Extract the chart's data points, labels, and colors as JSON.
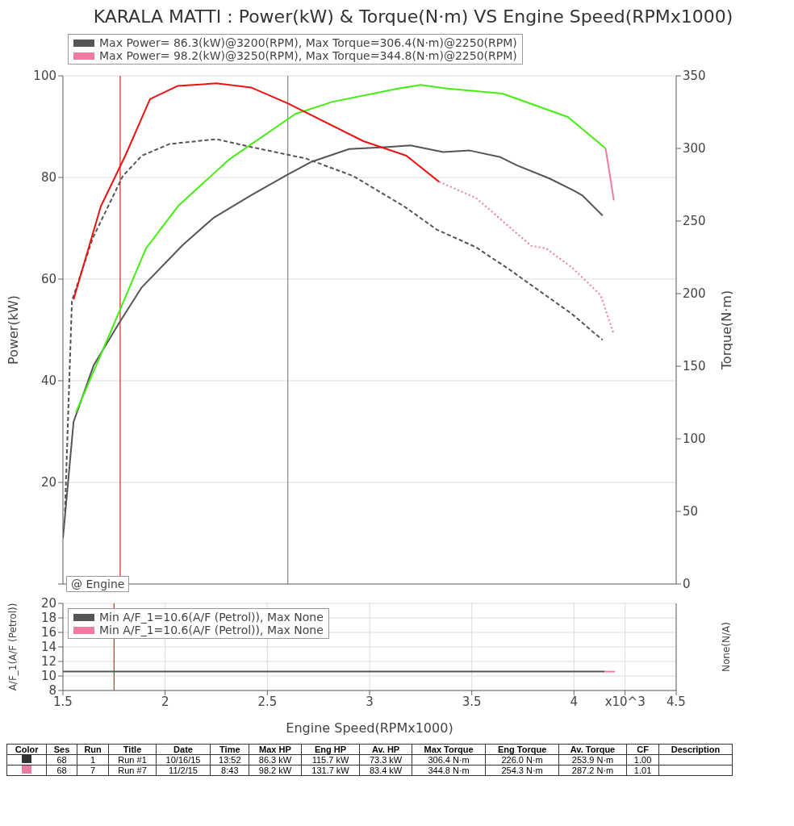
{
  "chart_data": [
    {
      "type": "line",
      "title": "KARALA MATTI : Power(kW) & Torque(N·m) VS Engine Speed(RPMx1000)",
      "ylabel": "Power(kW)",
      "y2label": "Torque(N·m)",
      "xlim": [
        1.5,
        4.5
      ],
      "xticks": [
        1.5,
        2,
        2.5,
        3,
        3.5,
        4,
        4.5
      ],
      "ylim": [
        0,
        100
      ],
      "yticks": [
        {
          "value": 0,
          "label": null
        },
        20,
        40,
        60,
        80,
        100
      ],
      "y2lim": [
        0,
        350
      ],
      "y2ticks": [
        0,
        50,
        100,
        150,
        200,
        250,
        300,
        350
      ],
      "tick_labels": "y",
      "grid": true,
      "legend": "top",
      "series": [
        {
          "name": "Max Power= 86.3(kW)@3200(RPM), Max Torque=306.4(N·m)@2250(RPM)",
          "color": "#555555",
          "line_style": "solid",
          "x": [
            1.5,
            1.552,
            1.65,
            1.777,
            1.886,
            2.086,
            2.235,
            2.42,
            2.596,
            2.717,
            2.9,
            3.09,
            3.2,
            3.36,
            3.49,
            3.64,
            3.72,
            3.88,
            4.0,
            4.04,
            4.14
          ],
          "values": [
            9,
            31.9,
            43,
            51.5,
            58.4,
            66.7,
            72,
            76.5,
            80.5,
            83.1,
            85.6,
            86,
            86.3,
            85,
            85.3,
            84,
            82.4,
            79.8,
            77.4,
            76.5,
            72.5
          ]
        },
        {
          "color": "#555555",
          "axis": "y2",
          "line_style": "dashed",
          "x": [
            1.51,
            1.544,
            1.645,
            1.793,
            1.886,
            2.02,
            2.25,
            2.42,
            2.69,
            2.92,
            3.17,
            3.33,
            3.52,
            3.68,
            3.99,
            4.14
          ],
          "values": [
            50,
            195,
            238,
            281,
            295,
            303,
            306.4,
            301,
            293,
            281,
            260,
            244,
            232,
            217,
            186,
            168
          ]
        },
        {
          "name": "Max Power= 98.2(kW)@3250(RPM), Max Torque=344.8(N·m)@2250(RPM)",
          "color": "#f07aa0",
          "line_style": "solid",
          "x": [
            4.155,
            4.195
          ],
          "values": [
            85.7,
            75.5
          ]
        },
        {
          "color": "#f07aa0",
          "axis": "y2",
          "line_style": "dotted",
          "x": [
            3.34,
            3.52,
            3.79,
            3.865,
            3.99,
            4.13,
            4.195
          ],
          "values": [
            277,
            266,
            233,
            231,
            218,
            199,
            172
          ]
        },
        {
          "color": "#44ee11",
          "line_style": "solid",
          "x": [
            1.564,
            1.753,
            1.906,
            2.066,
            2.315,
            2.637,
            2.82,
            3.14,
            3.25,
            3.38,
            3.65,
            3.97,
            4.155
          ],
          "values": [
            33.8,
            51.5,
            66,
            74.5,
            83.6,
            92.5,
            94.9,
            97.5,
            98.2,
            97.5,
            96.5,
            91.9,
            85.7
          ]
        },
        {
          "color": "#ee1111",
          "axis": "y2",
          "line_style": "solid",
          "x": [
            1.552,
            1.685,
            1.805,
            1.926,
            2.06,
            2.25,
            2.42,
            2.6,
            2.97,
            3.18,
            3.34
          ],
          "values": [
            196,
            260,
            295,
            334,
            343,
            344.8,
            342,
            331,
            305,
            295,
            277
          ]
        }
      ],
      "ref_lines": [
        {
          "axis": "x",
          "value": 2.6,
          "color": "#888888"
        },
        {
          "axis": "x",
          "value": 1.78,
          "color": "#dd2222"
        }
      ],
      "annotations": [
        "@ Engine"
      ]
    },
    {
      "type": "line",
      "xlabel": "Engine Speed(RPMx1000)",
      "ylabel": "A/F_1(A/F (Petrol))",
      "y2label": "None(N/A)",
      "xlim": [
        1.5,
        4.5
      ],
      "xticks": [
        1.5,
        2,
        2.5,
        3,
        3.5,
        4,
        {
          "value": 4.25,
          "label": "x10^3"
        },
        4.5
      ],
      "ylim": [
        8,
        20
      ],
      "yticks": [
        8,
        10,
        12,
        14,
        16,
        18,
        20
      ],
      "grid": true,
      "legend": "top left",
      "series": [
        {
          "name": "Min A/F_1=10.6(A/F (Petrol)), Max None",
          "color": "#555555",
          "line_style": "solid",
          "x": [
            1.5,
            4.15
          ],
          "values": [
            10.6,
            10.6
          ]
        },
        {
          "name": "Min A/F_1=10.6(A/F (Petrol)), Max None",
          "color": "#f07aa0",
          "line_style": "solid",
          "x": [
            4.15,
            4.2
          ],
          "values": [
            10.6,
            10.6
          ]
        }
      ],
      "ref_lines": [
        {
          "axis": "x",
          "value": 1.75,
          "color": "#dd2222"
        }
      ]
    },
    {
      "type": "other",
      "categories": [
        "Color",
        "Ses",
        "Run",
        "Title",
        "Date",
        "Time",
        "Max HP",
        "Eng HP",
        "Av. HP",
        "Max Torque",
        "Eng Torque",
        "Av. Torque",
        "CF",
        "Description"
      ],
      "colors": [
        "#333333",
        "#f07aa0"
      ],
      "cell_labels": [
        [
          null,
          "68",
          "1",
          "Run #1",
          "10/16/15",
          "13:52",
          "86.3 kW",
          "115.7 kW",
          "73.3 kW",
          "306.4 N·m",
          "226.0 N·m",
          "253.9 N·m",
          "1.00",
          null
        ],
        [
          null,
          "68",
          "7",
          "Run #7",
          "11/2/15",
          "8:43",
          "98.2 kW",
          "131.7 kW",
          "83.4 kW",
          "344.8 N·m",
          "254.3 N·m",
          "287.2 N·m",
          "1.01",
          null
        ]
      ]
    }
  ]
}
